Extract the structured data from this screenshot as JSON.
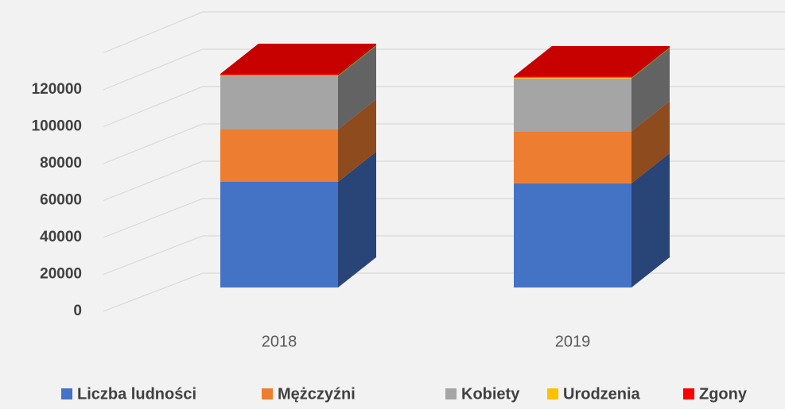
{
  "chart_data": {
    "type": "bar3d_stacked",
    "categories": [
      "2018",
      "2019"
    ],
    "series": [
      {
        "name": "Liczba ludności",
        "color": "#4472c4",
        "values": [
          57200,
          56400
        ]
      },
      {
        "name": "Mężczyźni",
        "color": "#ed7d31",
        "values": [
          28400,
          28200
        ]
      },
      {
        "name": "Kobiety",
        "color": "#a5a5a5",
        "values": [
          28800,
          28600
        ]
      },
      {
        "name": "Urodzenia",
        "color": "#ffc000",
        "values": [
          600,
          550
        ]
      },
      {
        "name": "Zgony",
        "color": "#ff0000",
        "values": [
          700,
          650
        ]
      }
    ],
    "ylim": [
      0,
      140000
    ],
    "yticks": [
      0,
      20000,
      40000,
      60000,
      80000,
      100000,
      120000
    ],
    "grid": true
  }
}
